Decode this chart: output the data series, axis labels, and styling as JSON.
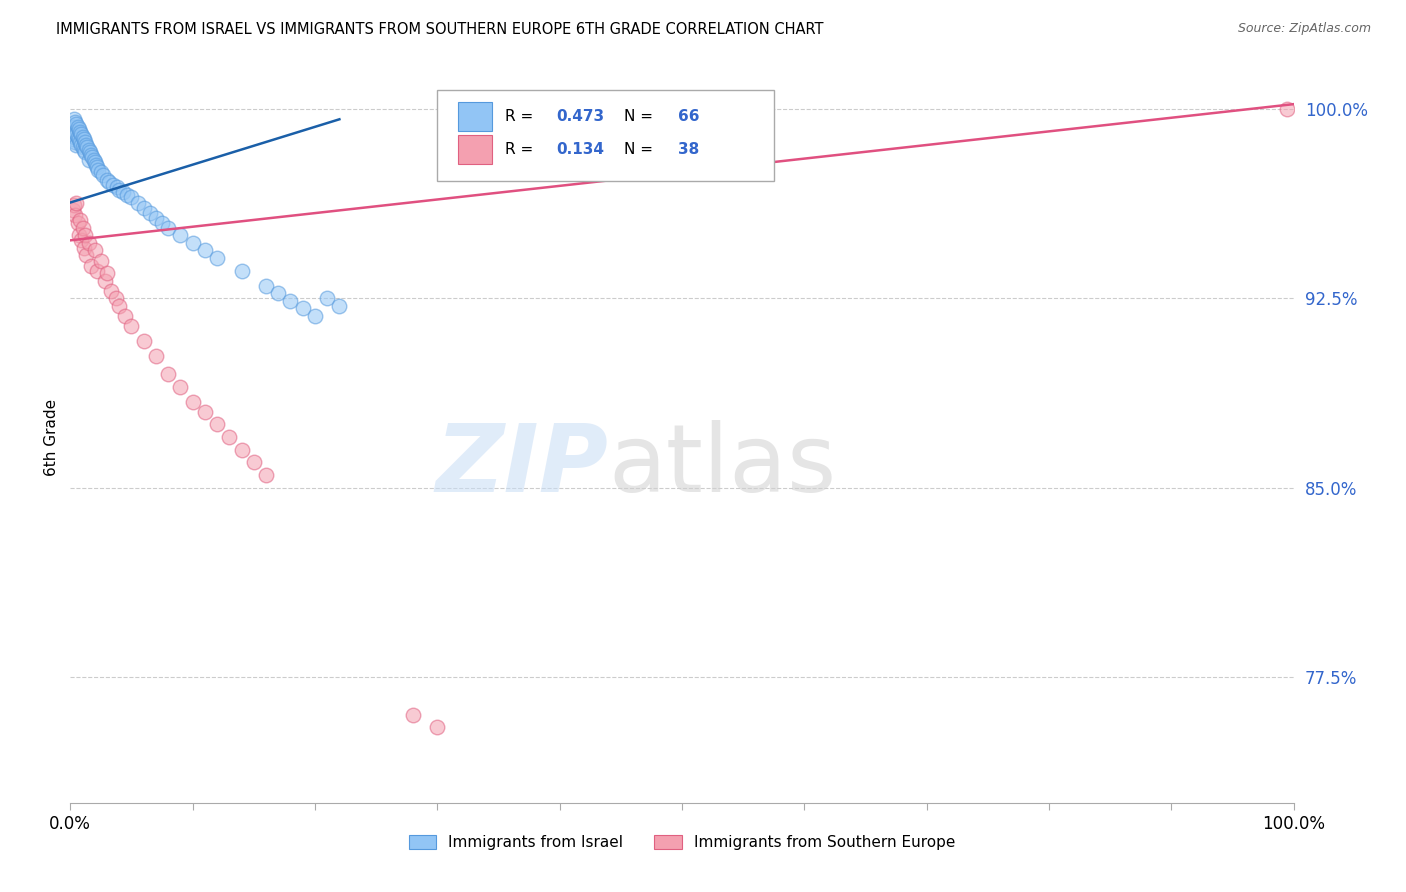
{
  "title": "IMMIGRANTS FROM ISRAEL VS IMMIGRANTS FROM SOUTHERN EUROPE 6TH GRADE CORRELATION CHART",
  "source": "Source: ZipAtlas.com",
  "ylabel": "6th Grade",
  "xlim": [
    0.0,
    1.0
  ],
  "ylim": [
    0.725,
    1.015
  ],
  "yticks": [
    0.775,
    0.85,
    0.925,
    1.0
  ],
  "ytick_labels": [
    "77.5%",
    "85.0%",
    "92.5%",
    "100.0%"
  ],
  "xtick_positions": [
    0.0,
    0.1,
    0.2,
    0.3,
    0.4,
    0.5,
    0.6,
    0.7,
    0.8,
    0.9,
    1.0
  ],
  "xtick_labels": [
    "0.0%",
    "",
    "",
    "",
    "",
    "",
    "",
    "",
    "",
    "",
    "100.0%"
  ],
  "israel_color": "#92c5f5",
  "israel_edge_color": "#5599dd",
  "southern_europe_color": "#f4a0b0",
  "southern_europe_edge_color": "#e06080",
  "israel_line_color": "#1a5fa8",
  "southern_europe_line_color": "#e05080",
  "israel_R": 0.473,
  "israel_N": 66,
  "southern_europe_R": 0.134,
  "southern_europe_N": 38,
  "legend_color": "#3366cc",
  "tick_label_color": "#3366cc",
  "grid_color": "#cccccc",
  "israel_scatter_x": [
    0.001,
    0.002,
    0.002,
    0.003,
    0.003,
    0.003,
    0.004,
    0.004,
    0.004,
    0.005,
    0.005,
    0.005,
    0.006,
    0.006,
    0.007,
    0.007,
    0.008,
    0.008,
    0.009,
    0.009,
    0.01,
    0.01,
    0.011,
    0.011,
    0.012,
    0.012,
    0.013,
    0.014,
    0.015,
    0.015,
    0.016,
    0.017,
    0.018,
    0.019,
    0.02,
    0.021,
    0.022,
    0.023,
    0.025,
    0.027,
    0.03,
    0.032,
    0.035,
    0.038,
    0.04,
    0.043,
    0.046,
    0.05,
    0.055,
    0.06,
    0.065,
    0.07,
    0.075,
    0.08,
    0.09,
    0.1,
    0.11,
    0.12,
    0.14,
    0.16,
    0.17,
    0.18,
    0.19,
    0.2,
    0.21,
    0.22
  ],
  "israel_scatter_y": [
    0.99,
    0.992,
    0.988,
    0.996,
    0.993,
    0.989,
    0.995,
    0.991,
    0.987,
    0.994,
    0.99,
    0.986,
    0.993,
    0.989,
    0.992,
    0.988,
    0.991,
    0.987,
    0.99,
    0.986,
    0.989,
    0.985,
    0.988,
    0.984,
    0.987,
    0.983,
    0.986,
    0.985,
    0.984,
    0.98,
    0.983,
    0.982,
    0.981,
    0.98,
    0.979,
    0.978,
    0.977,
    0.976,
    0.975,
    0.974,
    0.972,
    0.971,
    0.97,
    0.969,
    0.968,
    0.967,
    0.966,
    0.965,
    0.963,
    0.961,
    0.959,
    0.957,
    0.955,
    0.953,
    0.95,
    0.947,
    0.944,
    0.941,
    0.936,
    0.93,
    0.927,
    0.924,
    0.921,
    0.918,
    0.925,
    0.922
  ],
  "southern_europe_scatter_x": [
    0.002,
    0.003,
    0.004,
    0.005,
    0.006,
    0.007,
    0.008,
    0.009,
    0.01,
    0.011,
    0.012,
    0.013,
    0.015,
    0.017,
    0.02,
    0.022,
    0.025,
    0.028,
    0.03,
    0.033,
    0.037,
    0.04,
    0.045,
    0.05,
    0.06,
    0.07,
    0.08,
    0.09,
    0.1,
    0.11,
    0.12,
    0.13,
    0.14,
    0.15,
    0.16,
    0.28,
    0.3,
    0.995
  ],
  "southern_europe_scatter_y": [
    0.96,
    0.962,
    0.958,
    0.963,
    0.955,
    0.95,
    0.956,
    0.948,
    0.953,
    0.945,
    0.95,
    0.942,
    0.947,
    0.938,
    0.944,
    0.936,
    0.94,
    0.932,
    0.935,
    0.928,
    0.925,
    0.922,
    0.918,
    0.914,
    0.908,
    0.902,
    0.895,
    0.89,
    0.884,
    0.88,
    0.875,
    0.87,
    0.865,
    0.86,
    0.855,
    0.76,
    0.755,
    1.0
  ],
  "israel_line_x": [
    0.0,
    0.22
  ],
  "israel_line_y": [
    0.963,
    0.996
  ],
  "southern_line_x": [
    0.0,
    1.0
  ],
  "southern_line_y": [
    0.948,
    1.002
  ]
}
